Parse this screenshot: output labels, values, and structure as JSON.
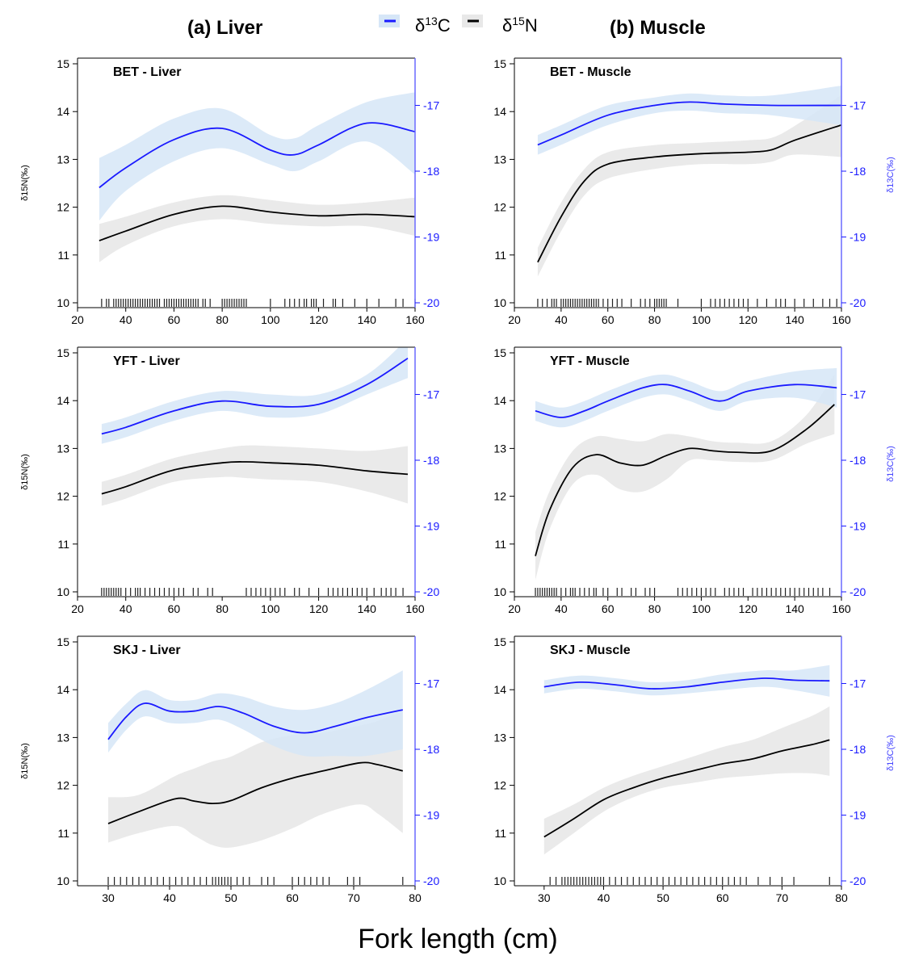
{
  "figure": {
    "column_titles": [
      "(a) Liver",
      "(b) Muscle"
    ],
    "x_axis_label": "Fork length (cm)",
    "legend": [
      {
        "name": "δ13C",
        "color": "#1a1aff",
        "band": "#d6e6f7"
      },
      {
        "name": "δ15N",
        "color": "#000000",
        "band": "#e8e8e8"
      }
    ],
    "left_axis_label": "δ15N(‰)",
    "right_axis_label": "δ13C(‰)"
  },
  "chart_data": [
    {
      "type": "line",
      "title": "BET - Liver",
      "xlim": [
        20,
        160
      ],
      "xticks": [
        20,
        40,
        60,
        80,
        100,
        120,
        140,
        160
      ],
      "ylim": [
        10,
        15
      ],
      "yticks": [
        10,
        11,
        12,
        13,
        14,
        15
      ],
      "y2lim": [
        -20,
        -16
      ],
      "y2ticks": [
        -20,
        -19,
        -18,
        -17,
        -16
      ],
      "show_left_label": true,
      "show_right_label": false,
      "series": [
        {
          "name": "δ15N",
          "axis": "left",
          "x": [
            29,
            40,
            60,
            80,
            100,
            120,
            140,
            160
          ],
          "y": [
            11.3,
            11.5,
            11.85,
            12.02,
            11.9,
            11.82,
            11.85,
            11.8
          ],
          "lower": [
            10.85,
            11.2,
            11.6,
            11.75,
            11.65,
            11.6,
            11.6,
            11.4
          ],
          "upper": [
            11.65,
            11.8,
            12.1,
            12.25,
            12.15,
            12.05,
            12.1,
            12.2
          ]
        },
        {
          "name": "δ13C",
          "axis": "right",
          "x": [
            29,
            40,
            60,
            80,
            100,
            110,
            120,
            140,
            160
          ],
          "y": [
            -18.25,
            -17.95,
            -17.52,
            -17.35,
            -17.68,
            -17.75,
            -17.6,
            -17.27,
            -17.4
          ],
          "lower": [
            -18.75,
            -18.3,
            -17.85,
            -17.65,
            -17.9,
            -18.0,
            -17.85,
            -17.55,
            -18.05
          ],
          "upper": [
            -17.8,
            -17.6,
            -17.2,
            -17.05,
            -17.45,
            -17.5,
            -17.3,
            -16.95,
            -16.8
          ]
        }
      ],
      "rug": [
        30,
        32,
        33,
        35,
        36,
        37,
        38,
        39,
        40,
        41,
        42,
        43,
        44,
        45,
        46,
        47,
        48,
        49,
        50,
        51,
        52,
        53,
        54,
        56,
        57,
        58,
        59,
        60,
        61,
        62,
        63,
        64,
        65,
        66,
        67,
        68,
        69,
        70,
        72,
        73,
        75,
        80,
        81,
        82,
        83,
        84,
        85,
        86,
        87,
        88,
        89,
        90,
        100,
        106,
        108,
        110,
        112,
        114,
        115,
        117,
        118,
        119,
        122,
        126,
        127,
        130,
        135,
        140,
        145,
        152,
        155,
        160
      ]
    },
    {
      "type": "line",
      "title": "BET - Muscle",
      "xlim": [
        20,
        160
      ],
      "xticks": [
        20,
        40,
        60,
        80,
        100,
        120,
        140,
        160
      ],
      "ylim": [
        10,
        15
      ],
      "yticks": [
        10,
        11,
        12,
        13,
        14,
        15
      ],
      "y2lim": [
        -20,
        -16
      ],
      "y2ticks": [
        -20,
        -19,
        -18,
        -17,
        -16
      ],
      "show_left_label": false,
      "show_right_label": true,
      "series": [
        {
          "name": "δ15N",
          "axis": "left",
          "x": [
            30,
            40,
            50,
            60,
            80,
            100,
            120,
            130,
            140,
            160
          ],
          "y": [
            10.85,
            11.8,
            12.55,
            12.9,
            13.05,
            13.12,
            13.15,
            13.2,
            13.4,
            13.72
          ],
          "lower": [
            10.55,
            11.5,
            12.25,
            12.6,
            12.8,
            12.9,
            12.9,
            12.95,
            13.1,
            13.05
          ],
          "upper": [
            11.15,
            12.1,
            12.8,
            13.15,
            13.3,
            13.35,
            13.4,
            13.45,
            13.7,
            14.35
          ]
        },
        {
          "name": "δ13C",
          "axis": "right",
          "x": [
            30,
            40,
            60,
            80,
            95,
            110,
            130,
            160
          ],
          "y": [
            -17.6,
            -17.45,
            -17.15,
            -17.0,
            -16.95,
            -16.98,
            -17.0,
            -17.0
          ],
          "lower": [
            -17.75,
            -17.6,
            -17.3,
            -17.12,
            -17.08,
            -17.12,
            -17.15,
            -17.3
          ],
          "upper": [
            -17.45,
            -17.3,
            -17.0,
            -16.88,
            -16.82,
            -16.85,
            -16.85,
            -16.7
          ]
        }
      ],
      "rug": [
        30,
        32,
        34,
        36,
        37,
        38,
        40,
        41,
        42,
        43,
        44,
        45,
        46,
        47,
        48,
        49,
        50,
        51,
        52,
        53,
        54,
        55,
        56,
        58,
        60,
        62,
        64,
        66,
        70,
        74,
        76,
        78,
        80,
        81,
        82,
        83,
        84,
        85,
        90,
        100,
        104,
        106,
        108,
        110,
        112,
        114,
        116,
        118,
        120,
        124,
        128,
        132,
        134,
        136,
        140,
        144,
        148,
        152,
        155,
        158
      ]
    },
    {
      "type": "line",
      "title": "YFT - Liver",
      "xlim": [
        20,
        160
      ],
      "xticks": [
        20,
        40,
        60,
        80,
        100,
        120,
        140,
        160
      ],
      "ylim": [
        10,
        15
      ],
      "yticks": [
        10,
        11,
        12,
        13,
        14,
        15
      ],
      "y2lim": [
        -20,
        -16
      ],
      "y2ticks": [
        -20,
        -19,
        -18,
        -17,
        -16
      ],
      "show_left_label": true,
      "show_right_label": false,
      "series": [
        {
          "name": "δ15N",
          "axis": "left",
          "x": [
            30,
            40,
            60,
            80,
            90,
            100,
            120,
            140,
            157
          ],
          "y": [
            12.05,
            12.2,
            12.55,
            12.7,
            12.72,
            12.7,
            12.65,
            12.53,
            12.46
          ],
          "lower": [
            11.8,
            11.95,
            12.3,
            12.4,
            12.38,
            12.35,
            12.3,
            12.1,
            11.85
          ],
          "upper": [
            12.3,
            12.45,
            12.8,
            13.0,
            13.06,
            13.05,
            13.0,
            12.95,
            13.05
          ]
        },
        {
          "name": "δ13C",
          "axis": "right",
          "x": [
            30,
            40,
            60,
            80,
            100,
            120,
            140,
            157
          ],
          "y": [
            -17.6,
            -17.5,
            -17.25,
            -17.1,
            -17.18,
            -17.15,
            -16.85,
            -16.45
          ],
          "lower": [
            -17.75,
            -17.65,
            -17.4,
            -17.25,
            -17.35,
            -17.3,
            -17.0,
            -16.75
          ],
          "upper": [
            -17.45,
            -17.35,
            -17.1,
            -16.95,
            -17.0,
            -17.0,
            -16.7,
            -16.15
          ]
        }
      ],
      "rug": [
        30,
        31,
        32,
        33,
        34,
        35,
        36,
        37,
        38,
        40,
        42,
        44,
        45,
        46,
        48,
        50,
        52,
        54,
        56,
        58,
        60,
        62,
        64,
        68,
        70,
        74,
        76,
        90,
        92,
        94,
        96,
        98,
        100,
        102,
        104,
        106,
        110,
        112,
        116,
        120,
        124,
        126,
        128,
        130,
        132,
        134,
        136,
        138,
        140,
        143,
        146,
        148,
        150,
        152,
        155
      ]
    },
    {
      "type": "line",
      "title": "YFT - Muscle",
      "xlim": [
        20,
        160
      ],
      "xticks": [
        20,
        40,
        60,
        80,
        100,
        120,
        140,
        160
      ],
      "ylim": [
        10,
        15
      ],
      "yticks": [
        10,
        11,
        12,
        13,
        14,
        15
      ],
      "y2lim": [
        -20,
        -16
      ],
      "y2ticks": [
        -20,
        -19,
        -18,
        -17,
        -16
      ],
      "show_left_label": false,
      "show_right_label": true,
      "series": [
        {
          "name": "δ15N",
          "axis": "left",
          "x": [
            29,
            35,
            45,
            55,
            65,
            75,
            85,
            95,
            105,
            115,
            130,
            145,
            157
          ],
          "y": [
            10.75,
            11.7,
            12.6,
            12.87,
            12.7,
            12.65,
            12.85,
            13.0,
            12.95,
            12.92,
            12.95,
            13.4,
            13.92
          ],
          "lower": [
            10.25,
            11.3,
            12.25,
            12.45,
            12.15,
            12.1,
            12.35,
            12.75,
            12.75,
            12.72,
            12.75,
            13.1,
            13.3
          ],
          "upper": [
            11.25,
            12.1,
            12.95,
            13.25,
            13.2,
            13.15,
            13.3,
            13.25,
            13.15,
            13.12,
            13.15,
            13.7,
            14.55
          ]
        },
        {
          "name": "δ13C",
          "axis": "right",
          "x": [
            29,
            40,
            50,
            60,
            75,
            85,
            95,
            108,
            120,
            140,
            158
          ],
          "y": [
            -17.25,
            -17.35,
            -17.25,
            -17.1,
            -16.9,
            -16.85,
            -16.95,
            -17.1,
            -16.95,
            -16.85,
            -16.9
          ],
          "lower": [
            -17.4,
            -17.5,
            -17.4,
            -17.25,
            -17.05,
            -17.0,
            -17.1,
            -17.25,
            -17.1,
            -17.05,
            -17.2
          ],
          "upper": [
            -17.1,
            -17.2,
            -17.1,
            -16.95,
            -16.75,
            -16.7,
            -16.8,
            -16.95,
            -16.8,
            -16.65,
            -16.6
          ]
        }
      ],
      "rug": [
        29,
        30,
        31,
        32,
        33,
        34,
        35,
        36,
        37,
        38,
        40,
        42,
        44,
        45,
        46,
        48,
        50,
        52,
        54,
        55,
        58,
        60,
        64,
        66,
        70,
        72,
        76,
        78,
        80,
        90,
        92,
        94,
        96,
        98,
        100,
        102,
        104,
        106,
        110,
        112,
        114,
        116,
        118,
        122,
        124,
        126,
        128,
        130,
        132,
        134,
        136,
        138,
        140,
        142,
        144,
        146,
        148,
        150,
        152,
        155
      ]
    },
    {
      "type": "line",
      "title": "SKJ - Liver",
      "xlim": [
        25,
        80
      ],
      "xticks": [
        30,
        40,
        50,
        60,
        70,
        80
      ],
      "ylim": [
        10,
        15
      ],
      "yticks": [
        10,
        11,
        12,
        13,
        14,
        15
      ],
      "y2lim": [
        -20,
        -16
      ],
      "y2ticks": [
        -20,
        -19,
        -18,
        -17,
        -16
      ],
      "show_left_label": true,
      "show_right_label": false,
      "series": [
        {
          "name": "δ15N",
          "axis": "left",
          "x": [
            30,
            35,
            41,
            44,
            47,
            50,
            55,
            60,
            65,
            71,
            74,
            78
          ],
          "y": [
            11.2,
            11.45,
            11.72,
            11.67,
            11.62,
            11.68,
            11.95,
            12.15,
            12.3,
            12.47,
            12.43,
            12.3
          ],
          "lower": [
            10.8,
            11.0,
            11.15,
            10.95,
            10.75,
            10.7,
            10.85,
            11.1,
            11.4,
            11.6,
            11.4,
            11.0
          ],
          "upper": [
            11.75,
            11.8,
            12.2,
            12.35,
            12.5,
            12.6,
            12.9,
            13.05,
            13.1,
            13.25,
            13.35,
            13.55
          ]
        },
        {
          "name": "δ13C",
          "axis": "right",
          "x": [
            30,
            33,
            36,
            40,
            44,
            48,
            52,
            57,
            62,
            67,
            72,
            78
          ],
          "y": [
            -17.85,
            -17.5,
            -17.3,
            -17.42,
            -17.42,
            -17.35,
            -17.45,
            -17.65,
            -17.75,
            -17.65,
            -17.52,
            -17.4
          ],
          "lower": [
            -18.05,
            -17.7,
            -17.5,
            -17.6,
            -17.6,
            -17.55,
            -17.7,
            -17.95,
            -18.1,
            -18.1,
            -18.1,
            -18.0
          ],
          "upper": [
            -17.6,
            -17.3,
            -17.1,
            -17.25,
            -17.25,
            -17.15,
            -17.2,
            -17.35,
            -17.4,
            -17.3,
            -17.1,
            -16.8
          ]
        }
      ],
      "rug": [
        30,
        31,
        32,
        33,
        34,
        35,
        36,
        37,
        38,
        39,
        40,
        41,
        42,
        43,
        44,
        45,
        46,
        47,
        47.5,
        48,
        48.5,
        49,
        49.5,
        50,
        51,
        52,
        53,
        55,
        56,
        57,
        60,
        61,
        62,
        63,
        64,
        65,
        66,
        69,
        70,
        71,
        78
      ]
    },
    {
      "type": "line",
      "title": "SKJ - Muscle",
      "xlim": [
        25,
        80
      ],
      "xticks": [
        30,
        40,
        50,
        60,
        70,
        80
      ],
      "ylim": [
        10,
        15
      ],
      "yticks": [
        10,
        11,
        12,
        13,
        14,
        15
      ],
      "y2lim": [
        -20,
        -16
      ],
      "y2ticks": [
        -20,
        -19,
        -18,
        -17,
        -16
      ],
      "show_left_label": false,
      "show_right_label": true,
      "series": [
        {
          "name": "δ15N",
          "axis": "left",
          "x": [
            30,
            35,
            40,
            45,
            50,
            55,
            60,
            65,
            70,
            75,
            78
          ],
          "y": [
            10.92,
            11.3,
            11.7,
            11.95,
            12.15,
            12.3,
            12.45,
            12.55,
            12.72,
            12.85,
            12.95
          ],
          "lower": [
            10.55,
            11.0,
            11.45,
            11.75,
            11.95,
            12.05,
            12.15,
            12.2,
            12.25,
            12.25,
            12.2
          ],
          "upper": [
            11.3,
            11.6,
            11.95,
            12.2,
            12.4,
            12.6,
            12.8,
            12.95,
            13.2,
            13.45,
            13.65
          ]
        },
        {
          "name": "δ13C",
          "axis": "right",
          "x": [
            30,
            36,
            42,
            48,
            54,
            60,
            67,
            72,
            78
          ],
          "y": [
            -17.05,
            -16.98,
            -17.02,
            -17.08,
            -17.05,
            -16.98,
            -16.92,
            -16.95,
            -16.96
          ],
          "lower": [
            -17.15,
            -17.08,
            -17.12,
            -17.18,
            -17.15,
            -17.1,
            -17.05,
            -17.1,
            -17.2
          ],
          "upper": [
            -16.95,
            -16.88,
            -16.92,
            -16.98,
            -16.95,
            -16.86,
            -16.8,
            -16.8,
            -16.72
          ]
        }
      ],
      "rug": [
        31,
        32,
        33,
        33.5,
        34,
        34.5,
        35,
        35.5,
        36,
        36.5,
        37,
        37.5,
        38,
        38.5,
        39,
        39.5,
        40,
        41,
        42,
        43,
        44,
        45,
        46,
        47,
        48,
        49,
        50,
        51,
        52,
        53,
        54,
        55,
        56,
        57,
        58,
        59,
        60,
        61,
        62,
        63,
        64,
        66,
        68,
        70,
        72,
        78
      ]
    }
  ]
}
